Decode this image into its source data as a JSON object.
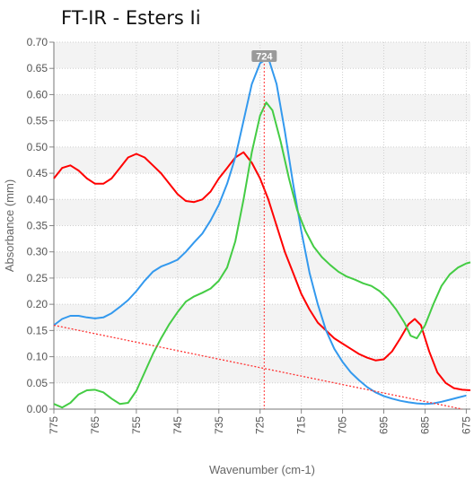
{
  "chart_data": {
    "type": "line",
    "title": "FT-IR - Esters Ii",
    "xlabel": "Wavenumber (cm-1)",
    "ylabel": "Absorbance (mm)",
    "xlim": [
      775,
      674
    ],
    "x_reversed": true,
    "ylim": [
      0,
      0.7
    ],
    "x_ticks": [
      "775",
      "765",
      "755",
      "745",
      "735",
      "725",
      "715",
      "705",
      "695",
      "685",
      "675"
    ],
    "y_ticks": [
      "0.00",
      "0.05",
      "0.10",
      "0.15",
      "0.20",
      "0.25",
      "0.30",
      "0.35",
      "0.40",
      "0.45",
      "0.50",
      "0.55",
      "0.60",
      "0.65",
      "0.70"
    ],
    "grid": true,
    "peak_marker": {
      "x": 724,
      "label": "724"
    },
    "baseline": {
      "color": "#ff3333",
      "points": [
        [
          775,
          0.16
        ],
        [
          676,
          0.0
        ]
      ]
    },
    "series": [
      {
        "color": "#ff0000",
        "points": [
          [
            775,
            0.44
          ],
          [
            773,
            0.46
          ],
          [
            771,
            0.465
          ],
          [
            769,
            0.455
          ],
          [
            767,
            0.44
          ],
          [
            765,
            0.43
          ],
          [
            763,
            0.43
          ],
          [
            761,
            0.44
          ],
          [
            759,
            0.46
          ],
          [
            757,
            0.48
          ],
          [
            755,
            0.487
          ],
          [
            753,
            0.48
          ],
          [
            751,
            0.465
          ],
          [
            749,
            0.45
          ],
          [
            747,
            0.43
          ],
          [
            745,
            0.41
          ],
          [
            743,
            0.397
          ],
          [
            741,
            0.395
          ],
          [
            739,
            0.4
          ],
          [
            737,
            0.415
          ],
          [
            735,
            0.44
          ],
          [
            733,
            0.46
          ],
          [
            731,
            0.48
          ],
          [
            729,
            0.49
          ],
          [
            727,
            0.47
          ],
          [
            725,
            0.44
          ],
          [
            723,
            0.4
          ],
          [
            721,
            0.35
          ],
          [
            719,
            0.3
          ],
          [
            717,
            0.26
          ],
          [
            715,
            0.22
          ],
          [
            713,
            0.19
          ],
          [
            711,
            0.165
          ],
          [
            709,
            0.15
          ],
          [
            707,
            0.135
          ],
          [
            705,
            0.125
          ],
          [
            703,
            0.115
          ],
          [
            701,
            0.105
          ],
          [
            699,
            0.098
          ],
          [
            697,
            0.093
          ],
          [
            695,
            0.095
          ],
          [
            693,
            0.11
          ],
          [
            691,
            0.135
          ],
          [
            689,
            0.162
          ],
          [
            687.5,
            0.172
          ],
          [
            686,
            0.16
          ],
          [
            684,
            0.11
          ],
          [
            682,
            0.07
          ],
          [
            680,
            0.05
          ],
          [
            678,
            0.04
          ],
          [
            676,
            0.037
          ],
          [
            674,
            0.036
          ]
        ]
      },
      {
        "color": "#3399ee",
        "points": [
          [
            775,
            0.16
          ],
          [
            773,
            0.172
          ],
          [
            771,
            0.178
          ],
          [
            769,
            0.178
          ],
          [
            767,
            0.175
          ],
          [
            765,
            0.173
          ],
          [
            763,
            0.175
          ],
          [
            761,
            0.183
          ],
          [
            759,
            0.195
          ],
          [
            757,
            0.208
          ],
          [
            755,
            0.225
          ],
          [
            753,
            0.245
          ],
          [
            751,
            0.262
          ],
          [
            749,
            0.272
          ],
          [
            747,
            0.278
          ],
          [
            745,
            0.285
          ],
          [
            743,
            0.3
          ],
          [
            741,
            0.318
          ],
          [
            739,
            0.335
          ],
          [
            737,
            0.36
          ],
          [
            735,
            0.39
          ],
          [
            733,
            0.43
          ],
          [
            731,
            0.48
          ],
          [
            729,
            0.55
          ],
          [
            727,
            0.62
          ],
          [
            725,
            0.66
          ],
          [
            723,
            0.67
          ],
          [
            721,
            0.62
          ],
          [
            719,
            0.53
          ],
          [
            717,
            0.43
          ],
          [
            715,
            0.34
          ],
          [
            713,
            0.26
          ],
          [
            711,
            0.2
          ],
          [
            709,
            0.15
          ],
          [
            707,
            0.115
          ],
          [
            705,
            0.09
          ],
          [
            703,
            0.07
          ],
          [
            701,
            0.055
          ],
          [
            699,
            0.042
          ],
          [
            697,
            0.032
          ],
          [
            695,
            0.025
          ],
          [
            693,
            0.02
          ],
          [
            691,
            0.016
          ],
          [
            689,
            0.013
          ],
          [
            687,
            0.011
          ],
          [
            685,
            0.01
          ],
          [
            683,
            0.011
          ],
          [
            681,
            0.014
          ],
          [
            679,
            0.018
          ],
          [
            677,
            0.022
          ],
          [
            675,
            0.026
          ]
        ]
      },
      {
        "color": "#44cc44",
        "points": [
          [
            775,
            0.01
          ],
          [
            773,
            0.003
          ],
          [
            771,
            0.012
          ],
          [
            769,
            0.028
          ],
          [
            767,
            0.036
          ],
          [
            765,
            0.037
          ],
          [
            763,
            0.032
          ],
          [
            761,
            0.02
          ],
          [
            759,
            0.01
          ],
          [
            757,
            0.012
          ],
          [
            755,
            0.035
          ],
          [
            753,
            0.07
          ],
          [
            751,
            0.105
          ],
          [
            749,
            0.135
          ],
          [
            747,
            0.162
          ],
          [
            745,
            0.185
          ],
          [
            743,
            0.205
          ],
          [
            741,
            0.215
          ],
          [
            739,
            0.222
          ],
          [
            737,
            0.23
          ],
          [
            735,
            0.245
          ],
          [
            733,
            0.27
          ],
          [
            731,
            0.32
          ],
          [
            729,
            0.4
          ],
          [
            727,
            0.49
          ],
          [
            725,
            0.56
          ],
          [
            723.5,
            0.585
          ],
          [
            722,
            0.57
          ],
          [
            720,
            0.51
          ],
          [
            718,
            0.44
          ],
          [
            716,
            0.38
          ],
          [
            714,
            0.34
          ],
          [
            712,
            0.31
          ],
          [
            710,
            0.29
          ],
          [
            708,
            0.275
          ],
          [
            706,
            0.262
          ],
          [
            704,
            0.253
          ],
          [
            702,
            0.247
          ],
          [
            700,
            0.24
          ],
          [
            698,
            0.235
          ],
          [
            696,
            0.225
          ],
          [
            694,
            0.21
          ],
          [
            692,
            0.19
          ],
          [
            690,
            0.165
          ],
          [
            688.5,
            0.14
          ],
          [
            687,
            0.135
          ],
          [
            685,
            0.16
          ],
          [
            683,
            0.2
          ],
          [
            681,
            0.235
          ],
          [
            679,
            0.257
          ],
          [
            677,
            0.27
          ],
          [
            675,
            0.278
          ],
          [
            674,
            0.28
          ]
        ]
      }
    ]
  }
}
